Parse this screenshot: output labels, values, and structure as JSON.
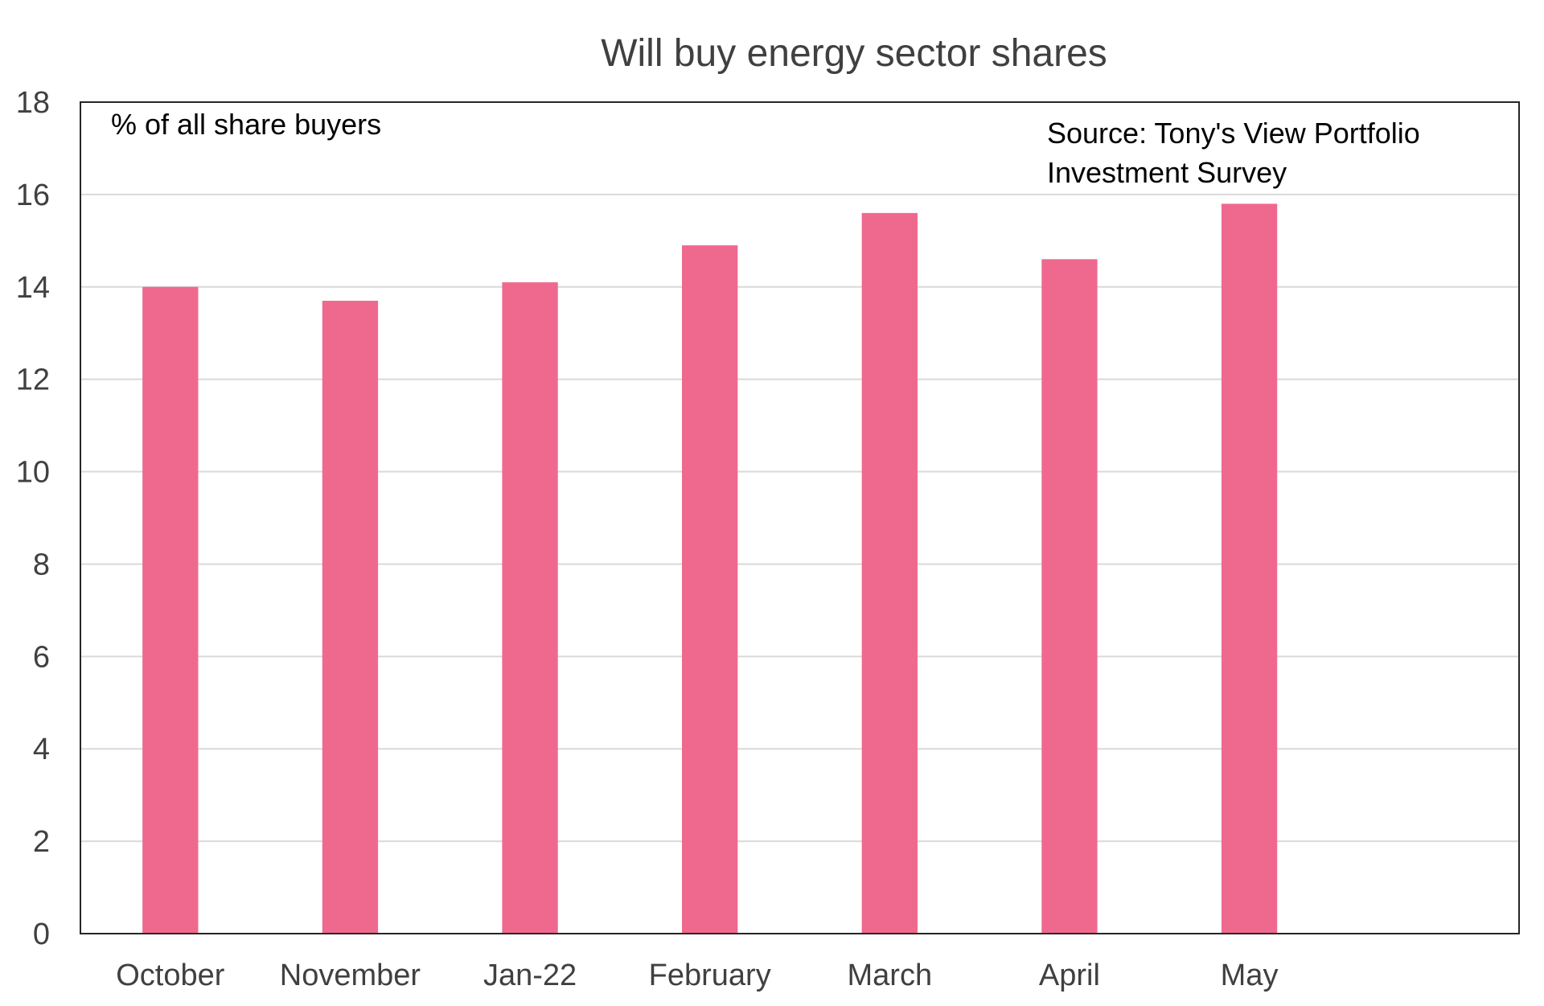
{
  "chart_data": {
    "type": "bar",
    "title": "Will buy energy sector shares",
    "ylabel": "% of all share buyers",
    "xlabel": "",
    "annotation": [
      "Source: Tony's View Portfolio",
      "Investment Survey"
    ],
    "categories": [
      "October",
      "November",
      "Jan-22",
      "February",
      "March",
      "April",
      "May"
    ],
    "values": [
      14.0,
      13.7,
      14.1,
      14.9,
      15.6,
      14.6,
      15.8
    ],
    "ylim": [
      0,
      18
    ],
    "yticks": [
      0,
      2,
      4,
      6,
      8,
      10,
      12,
      14,
      16,
      18
    ],
    "category_slots": 8,
    "grid": true,
    "legend": "none",
    "bar_color": "#EF698E"
  }
}
